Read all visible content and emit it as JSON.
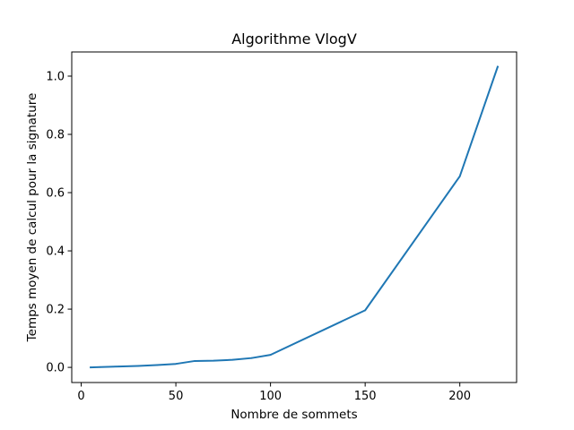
{
  "chart_data": {
    "type": "line",
    "title": "Algorithme VlogV",
    "xlabel": "Nombre de sommets",
    "ylabel": "Temps moyen de calcul pour la signature",
    "xlim": [
      -5,
      230
    ],
    "ylim": [
      -0.052,
      1.083
    ],
    "x_ticks": [
      0,
      50,
      100,
      150,
      200
    ],
    "x_tick_labels": [
      "0",
      "50",
      "100",
      "150",
      "200"
    ],
    "y_ticks": [
      0.0,
      0.2,
      0.4,
      0.6,
      0.8,
      1.0
    ],
    "y_tick_labels": [
      "0.0",
      "0.2",
      "0.4",
      "0.6",
      "0.8",
      "1.0"
    ],
    "grid": false,
    "series": [
      {
        "color": "#1f77b4",
        "x": [
          5,
          10,
          20,
          30,
          40,
          50,
          60,
          70,
          80,
          90,
          100,
          150,
          200,
          220
        ],
        "y": [
          0.0,
          0.001,
          0.003,
          0.005,
          0.008,
          0.012,
          0.022,
          0.023,
          0.026,
          0.032,
          0.043,
          0.196,
          0.656,
          1.032
        ]
      }
    ]
  }
}
